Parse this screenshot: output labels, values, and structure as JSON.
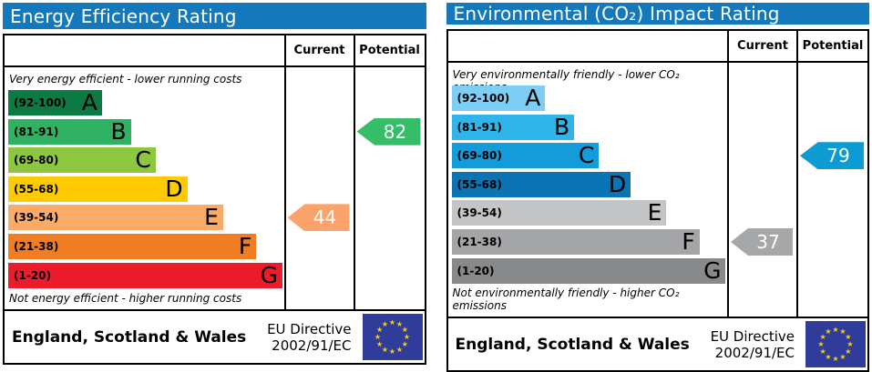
{
  "colors": {
    "header_bg": "#1479bc",
    "eu_flag_bg": "#303c99",
    "eu_flag_star": "#ffcc00"
  },
  "panels": [
    {
      "title": "Energy Efficiency Rating",
      "col_current": "Current",
      "col_potential": "Potential",
      "top_caption": "Very energy efficient - lower running costs",
      "bottom_caption": "Not energy efficient - higher running costs",
      "bands": [
        {
          "letter": "A",
          "range": "(92-100)",
          "color": "#0b7b43",
          "width_pct": 34
        },
        {
          "letter": "B",
          "range": "(81-91)",
          "color": "#2eb162",
          "width_pct": 44.5
        },
        {
          "letter": "C",
          "range": "(69-80)",
          "color": "#8dc63f",
          "width_pct": 53.5
        },
        {
          "letter": "D",
          "range": "(55-68)",
          "color": "#fecb00",
          "width_pct": 65
        },
        {
          "letter": "E",
          "range": "(39-54)",
          "color": "#fbaa68",
          "width_pct": 78
        },
        {
          "letter": "F",
          "range": "(21-38)",
          "color": "#f07d23",
          "width_pct": 90
        },
        {
          "letter": "G",
          "range": "(1-20)",
          "color": "#ed1c2d",
          "width_pct": 99.5
        }
      ],
      "current": {
        "value": "44",
        "band_index": 4,
        "color": "#fba36b"
      },
      "potential": {
        "value": "82",
        "band_index": 1,
        "color": "#35bd68"
      },
      "footer": {
        "region": "England, Scotland & Wales",
        "directive_line1": "EU Directive",
        "directive_line2": "2002/91/EC"
      }
    },
    {
      "title": "Environmental (CO₂) Impact Rating",
      "col_current": "Current",
      "col_potential": "Potential",
      "top_caption": "Very environmentally friendly - lower CO₂ emissions",
      "bottom_caption": "Not environmentally friendly - higher CO₂ emissions",
      "bands": [
        {
          "letter": "A",
          "range": "(92-100)",
          "color": "#7dcef4",
          "width_pct": 34
        },
        {
          "letter": "B",
          "range": "(81-91)",
          "color": "#2fb5e9",
          "width_pct": 44.5
        },
        {
          "letter": "C",
          "range": "(69-80)",
          "color": "#149bd9",
          "width_pct": 53.5
        },
        {
          "letter": "D",
          "range": "(55-68)",
          "color": "#0b74b4",
          "width_pct": 65
        },
        {
          "letter": "E",
          "range": "(39-54)",
          "color": "#c4c5c7",
          "width_pct": 78
        },
        {
          "letter": "F",
          "range": "(21-38)",
          "color": "#a4a5a7",
          "width_pct": 90
        },
        {
          "letter": "G",
          "range": "(1-20)",
          "color": "#88898b",
          "width_pct": 99.5
        }
      ],
      "current": {
        "value": "37",
        "band_index": 5,
        "color": "#a6a7a9"
      },
      "potential": {
        "value": "79",
        "band_index": 2,
        "color": "#0d9bd3"
      },
      "footer": {
        "region": "England, Scotland & Wales",
        "directive_line1": "EU Directive",
        "directive_line2": "2002/91/EC"
      }
    }
  ],
  "chart_data": [
    {
      "type": "bar",
      "title": "Energy Efficiency Rating",
      "categories": [
        "A (92-100)",
        "B (81-91)",
        "C (69-80)",
        "D (55-68)",
        "E (39-54)",
        "F (21-38)",
        "G (1-20)"
      ],
      "series": [
        {
          "name": "Current",
          "value": 44,
          "band": "E"
        },
        {
          "name": "Potential",
          "value": 82,
          "band": "B"
        }
      ],
      "top_caption": "Very energy efficient - lower running costs",
      "bottom_caption": "Not energy efficient - higher running costs",
      "footnote": "England, Scotland & Wales — EU Directive 2002/91/EC"
    },
    {
      "type": "bar",
      "title": "Environmental (CO₂) Impact Rating",
      "categories": [
        "A (92-100)",
        "B (81-91)",
        "C (69-80)",
        "D (55-68)",
        "E (39-54)",
        "F (21-38)",
        "G (1-20)"
      ],
      "series": [
        {
          "name": "Current",
          "value": 37,
          "band": "F"
        },
        {
          "name": "Potential",
          "value": 79,
          "band": "C"
        }
      ],
      "top_caption": "Very environmentally friendly - lower CO₂ emissions",
      "bottom_caption": "Not environmentally friendly - higher CO₂ emissions",
      "footnote": "England, Scotland & Wales — EU Directive 2002/91/EC"
    }
  ]
}
